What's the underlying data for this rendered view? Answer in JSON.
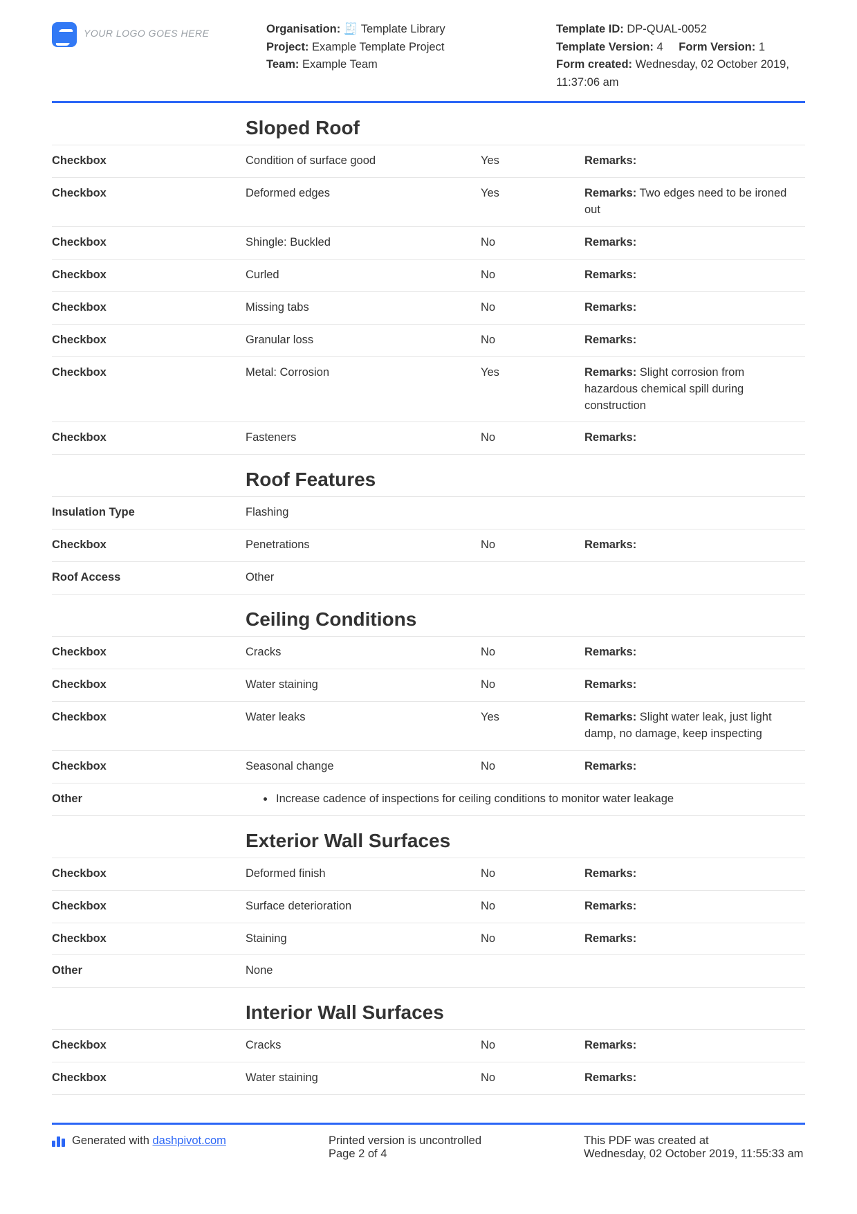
{
  "logo_placeholder": "YOUR LOGO GOES HERE",
  "header_mid": {
    "org_label": "Organisation:",
    "org_value": "🧾 Template Library",
    "project_label": "Project:",
    "project_value": "Example Template Project",
    "team_label": "Team:",
    "team_value": "Example Team"
  },
  "header_right": {
    "tid_label": "Template ID:",
    "tid_value": "DP-QUAL-0052",
    "tver_label": "Template Version:",
    "tver_value": "4",
    "fver_label": "Form Version:",
    "fver_value": "1",
    "created_label": "Form created:",
    "created_value": "Wednesday, 02 October 2019, 11:37:06 am"
  },
  "remarks_label": "Remarks:",
  "sections": [
    {
      "title": "Sloped Roof",
      "rows": [
        {
          "type": "Checkbox",
          "item": "Condition of surface good",
          "ans": "Yes",
          "rem": ""
        },
        {
          "type": "Checkbox",
          "item": "Deformed edges",
          "ans": "Yes",
          "rem": "Two edges need to be ironed out"
        },
        {
          "type": "Checkbox",
          "item": "Shingle: Buckled",
          "ans": "No",
          "rem": ""
        },
        {
          "type": "Checkbox",
          "item": "Curled",
          "ans": "No",
          "rem": ""
        },
        {
          "type": "Checkbox",
          "item": "Missing tabs",
          "ans": "No",
          "rem": ""
        },
        {
          "type": "Checkbox",
          "item": "Granular loss",
          "ans": "No",
          "rem": ""
        },
        {
          "type": "Checkbox",
          "item": "Metal: Corrosion",
          "ans": "Yes",
          "rem": "Slight corrosion from hazardous chemical spill during construction"
        },
        {
          "type": "Checkbox",
          "item": "Fasteners",
          "ans": "No",
          "rem": ""
        }
      ]
    },
    {
      "title": "Roof Features",
      "rows": [
        {
          "type": "Insulation Type",
          "item": "Flashing",
          "ans": "",
          "rem": null
        },
        {
          "type": "Checkbox",
          "item": "Penetrations",
          "ans": "No",
          "rem": ""
        },
        {
          "type": "Roof Access",
          "item": "Other",
          "ans": "",
          "rem": null
        }
      ]
    },
    {
      "title": "Ceiling Conditions",
      "rows": [
        {
          "type": "Checkbox",
          "item": "Cracks",
          "ans": "No",
          "rem": ""
        },
        {
          "type": "Checkbox",
          "item": "Water staining",
          "ans": "No",
          "rem": ""
        },
        {
          "type": "Checkbox",
          "item": "Water leaks",
          "ans": "Yes",
          "rem": "Slight water leak, just light damp, no damage, keep inspecting"
        },
        {
          "type": "Checkbox",
          "item": "Seasonal change",
          "ans": "No",
          "rem": ""
        },
        {
          "type": "Other",
          "bullet": "Increase cadence of inspections for ceiling conditions to monitor water leakage"
        }
      ]
    },
    {
      "title": "Exterior Wall Surfaces",
      "rows": [
        {
          "type": "Checkbox",
          "item": "Deformed finish",
          "ans": "No",
          "rem": ""
        },
        {
          "type": "Checkbox",
          "item": "Surface deterioration",
          "ans": "No",
          "rem": ""
        },
        {
          "type": "Checkbox",
          "item": "Staining",
          "ans": "No",
          "rem": ""
        },
        {
          "type": "Other",
          "item": "None",
          "ans": "",
          "rem": null
        }
      ]
    },
    {
      "title": "Interior Wall Surfaces",
      "rows": [
        {
          "type": "Checkbox",
          "item": "Cracks",
          "ans": "No",
          "rem": ""
        },
        {
          "type": "Checkbox",
          "item": "Water staining",
          "ans": "No",
          "rem": ""
        }
      ]
    }
  ],
  "footer": {
    "gen_label": "Generated with ",
    "gen_link_text": "dashpivot.com",
    "mid_line1": "Printed version is uncontrolled",
    "mid_line2": "Page 2 of 4",
    "right_line1": "This PDF was created at",
    "right_line2": "Wednesday, 02 October 2019, 11:55:33 am"
  }
}
